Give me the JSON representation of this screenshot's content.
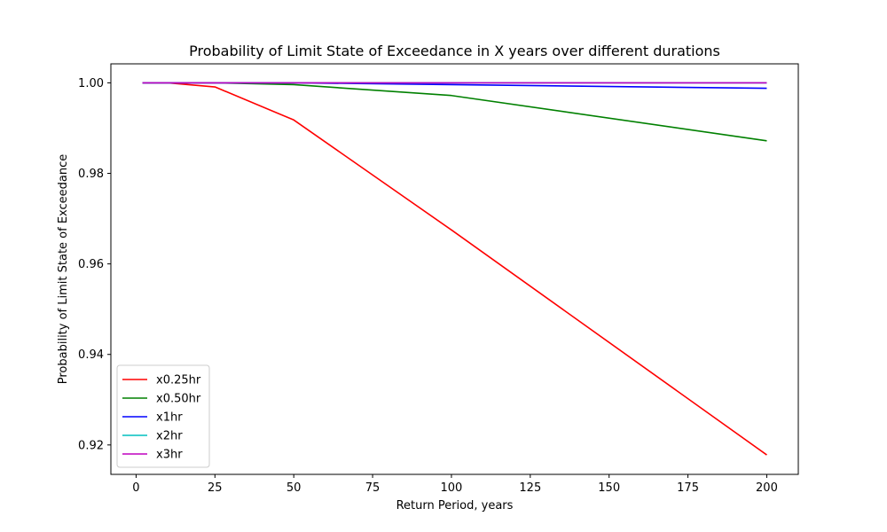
{
  "chart_data": {
    "type": "line",
    "title": "Probability of Limit State of Exceedance in X years over different durations",
    "xlabel": "Return Period, years",
    "ylabel": "Probability of Limit State of Exceedance",
    "xlim": [
      -8,
      210
    ],
    "ylim": [
      0.9135,
      1.0042
    ],
    "x_ticks": [
      0,
      25,
      50,
      75,
      100,
      125,
      150,
      175,
      200
    ],
    "y_ticks": [
      0.92,
      0.94,
      0.96,
      0.98,
      1.0
    ],
    "y_tick_labels": [
      "0.92",
      "0.94",
      "0.96",
      "0.98",
      "1.00"
    ],
    "grid": false,
    "legend_position": "lower-left",
    "x": [
      2,
      10,
      25,
      50,
      100,
      200
    ],
    "series": [
      {
        "name": "x0.25hr",
        "color": "#ff0000",
        "values": [
          1.0,
          1.0,
          0.9991,
          0.9918,
          0.9675,
          0.9178
        ]
      },
      {
        "name": "x0.50hr",
        "color": "#008000",
        "values": [
          1.0,
          1.0,
          1.0,
          0.9996,
          0.9972,
          0.9872
        ]
      },
      {
        "name": "x1hr",
        "color": "#0000ff",
        "values": [
          1.0,
          1.0,
          1.0,
          1.0,
          0.9996,
          0.9988
        ]
      },
      {
        "name": "x2hr",
        "color": "#00bfbf",
        "values": [
          1.0,
          1.0,
          1.0,
          1.0,
          1.0,
          1.0
        ]
      },
      {
        "name": "x3hr",
        "color": "#bf00bf",
        "values": [
          1.0,
          1.0,
          1.0,
          1.0,
          1.0,
          1.0
        ]
      }
    ]
  }
}
